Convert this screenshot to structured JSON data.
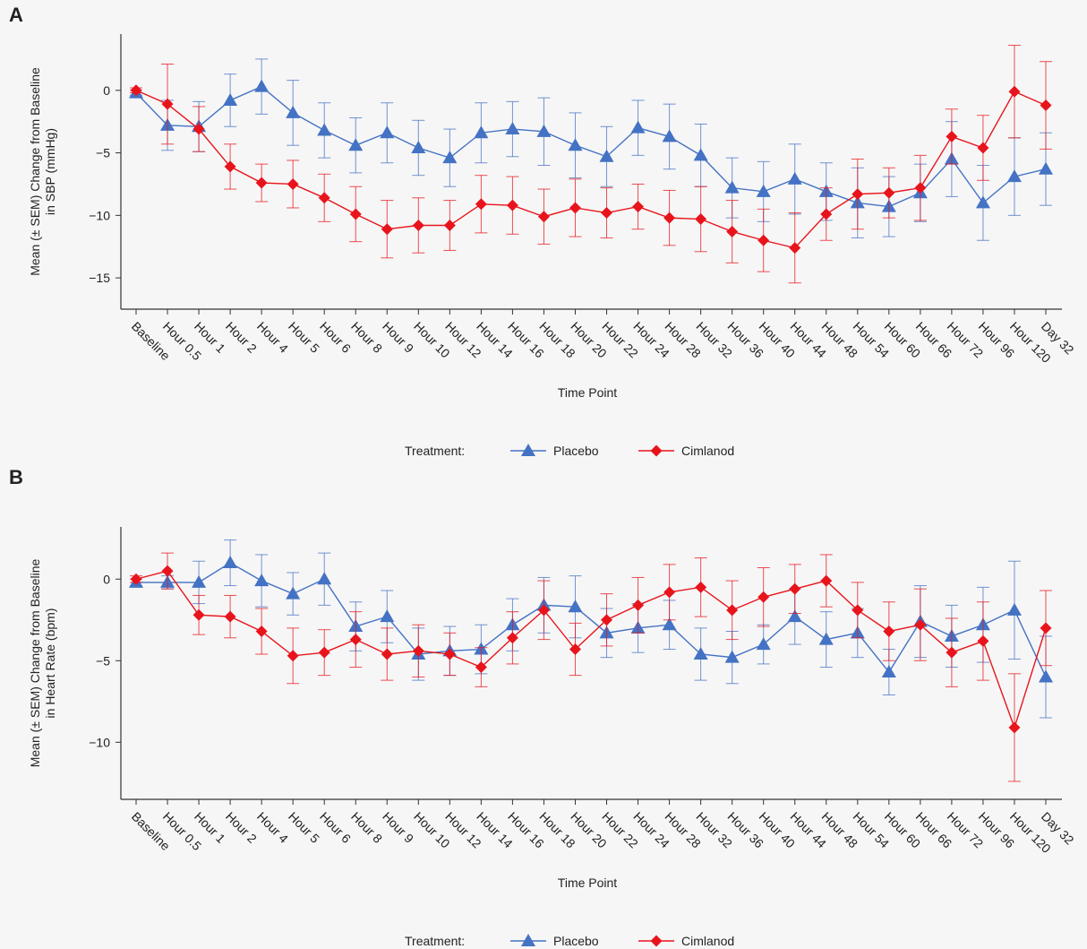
{
  "figure": {
    "panel_a_letter": "A",
    "panel_b_letter": "B"
  },
  "legend": {
    "title": "Treatment:",
    "items": [
      {
        "name": "Placebo",
        "color": "#4472c4",
        "marker": "triangle"
      },
      {
        "name": "Cimlanod",
        "color": "#e8141c",
        "marker": "diamond"
      }
    ]
  },
  "chart_data": [
    {
      "type": "line",
      "panel": "A",
      "title": "",
      "xlabel": "Time Point",
      "ylabel_lines": [
        "Mean (± SEM) Change from Baseline",
        "in SBP (mmHg)"
      ],
      "ylim": [
        -17.5,
        4.5
      ],
      "yticks": [
        0,
        -5,
        -10,
        -15
      ],
      "grid": false,
      "categories": [
        "Baseline",
        "Hour 0.5",
        "Hour 1",
        "Hour 2",
        "Hour 4",
        "Hour 5",
        "Hour 6",
        "Hour 8",
        "Hour 9",
        "Hour 10",
        "Hour 12",
        "Hour 14",
        "Hour 16",
        "Hour 18",
        "Hour 20",
        "Hour 22",
        "Hour 24",
        "Hour 28",
        "Hour 32",
        "Hour 36",
        "Hour 40",
        "Hour 44",
        "Hour 48",
        "Hour 54",
        "Hour 60",
        "Hour 66",
        "Hour 72",
        "Hour 96",
        "Hour 120",
        "Day 32"
      ],
      "series": [
        {
          "name": "Placebo",
          "color": "#4472c4",
          "marker": "triangle",
          "values": [
            -0.2,
            -2.8,
            -2.9,
            -0.8,
            0.3,
            -1.8,
            -3.2,
            -4.4,
            -3.4,
            -4.6,
            -5.4,
            -3.4,
            -3.1,
            -3.3,
            -4.4,
            -5.3,
            -3.0,
            -3.7,
            -5.2,
            -7.8,
            -8.1,
            -7.1,
            -8.1,
            -9.0,
            -9.3,
            -8.2,
            -5.5,
            -9.0,
            -6.9,
            -6.3
          ],
          "errors": [
            0.2,
            2.0,
            2.0,
            2.1,
            2.2,
            2.6,
            2.2,
            2.2,
            2.4,
            2.2,
            2.3,
            2.4,
            2.2,
            2.7,
            2.6,
            2.4,
            2.2,
            2.6,
            2.5,
            2.4,
            2.4,
            2.8,
            2.3,
            2.8,
            2.4,
            2.3,
            3.0,
            3.0,
            3.1,
            2.9
          ]
        },
        {
          "name": "Cimlanod",
          "color": "#e8141c",
          "marker": "diamond",
          "values": [
            0,
            -1.1,
            -3.1,
            -6.1,
            -7.4,
            -7.5,
            -8.6,
            -9.9,
            -11.1,
            -10.8,
            -10.8,
            -9.1,
            -9.2,
            -10.1,
            -9.4,
            -9.8,
            -9.3,
            -10.2,
            -10.3,
            -11.3,
            -12.0,
            -12.6,
            -9.9,
            -8.3,
            -8.2,
            -7.8,
            -3.7,
            -4.6,
            -0.1,
            -1.2
          ],
          "errors": [
            0.2,
            3.2,
            1.8,
            1.8,
            1.5,
            1.9,
            1.9,
            2.2,
            2.3,
            2.2,
            2.0,
            2.3,
            2.3,
            2.2,
            2.3,
            2.0,
            1.8,
            2.2,
            2.6,
            2.5,
            2.5,
            2.8,
            2.1,
            2.8,
            2.0,
            2.6,
            2.2,
            2.6,
            3.7,
            3.5
          ]
        }
      ]
    },
    {
      "type": "line",
      "panel": "B",
      "title": "",
      "xlabel": "Time Point",
      "ylabel_lines": [
        "Mean (± SEM) Change from Baseline",
        "in Heart Rate (bpm)"
      ],
      "ylim": [
        -13.5,
        3.2
      ],
      "yticks": [
        0,
        -5,
        -10
      ],
      "grid": false,
      "categories": [
        "Baseline",
        "Hour 0.5",
        "Hour 1",
        "Hour 2",
        "Hour 4",
        "Hour 5",
        "Hour 6",
        "Hour 8",
        "Hour 9",
        "Hour 10",
        "Hour 12",
        "Hour 14",
        "Hour 16",
        "Hour 18",
        "Hour 20",
        "Hour 22",
        "Hour 24",
        "Hour 28",
        "Hour 32",
        "Hour 36",
        "Hour 40",
        "Hour 44",
        "Hour 48",
        "Hour 54",
        "Hour 60",
        "Hour 66",
        "Hour 72",
        "Hour 96",
        "Hour 120",
        "Day 32"
      ],
      "series": [
        {
          "name": "Placebo",
          "color": "#4472c4",
          "marker": "triangle",
          "values": [
            -0.2,
            -0.2,
            -0.2,
            1.0,
            -0.1,
            -0.9,
            0.0,
            -2.9,
            -2.3,
            -4.6,
            -4.4,
            -4.3,
            -2.8,
            -1.6,
            -1.7,
            -3.3,
            -3.0,
            -2.8,
            -4.6,
            -4.8,
            -4.0,
            -2.3,
            -3.7,
            -3.3,
            -5.7,
            -2.6,
            -3.5,
            -2.8,
            -1.9,
            -6.0
          ],
          "errors": [
            0.2,
            0.4,
            1.3,
            1.4,
            1.6,
            1.3,
            1.6,
            1.5,
            1.6,
            1.6,
            1.5,
            1.5,
            1.6,
            1.7,
            1.9,
            1.5,
            1.5,
            1.5,
            1.6,
            1.6,
            1.2,
            1.7,
            1.7,
            1.5,
            1.4,
            2.2,
            1.9,
            2.3,
            3.0,
            2.5
          ]
        },
        {
          "name": "Cimlanod",
          "color": "#e8141c",
          "marker": "diamond",
          "values": [
            0,
            0.5,
            -2.2,
            -2.3,
            -3.2,
            -4.7,
            -4.5,
            -3.7,
            -4.6,
            -4.4,
            -4.6,
            -5.4,
            -3.6,
            -1.9,
            -4.3,
            -2.5,
            -1.6,
            -0.8,
            -0.5,
            -1.9,
            -1.1,
            -0.6,
            -0.1,
            -1.9,
            -3.2,
            -2.8,
            -4.5,
            -3.8,
            -9.1,
            -3.0
          ],
          "errors": [
            0.2,
            1.1,
            1.2,
            1.3,
            1.4,
            1.7,
            1.4,
            1.7,
            1.6,
            1.6,
            1.3,
            1.2,
            1.6,
            1.8,
            1.6,
            1.6,
            1.7,
            1.7,
            1.8,
            1.8,
            1.8,
            1.5,
            1.6,
            1.7,
            1.8,
            2.2,
            2.1,
            2.4,
            3.3,
            2.3
          ]
        }
      ]
    }
  ]
}
